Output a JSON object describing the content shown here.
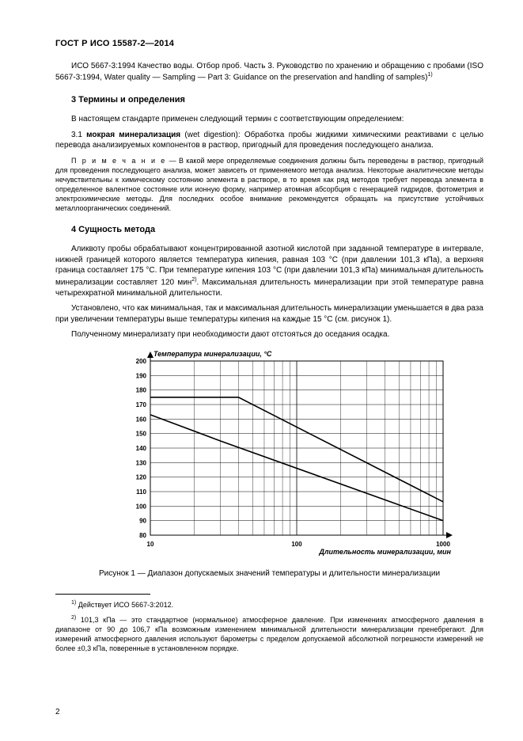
{
  "header": "ГОСТ Р ИСО 15587-2—2014",
  "para_iso": "ИСО 5667-3:1994 Качество воды. Отбор проб. Часть 3. Руководство по хранению и обращению с пробами (ISO 5667-3:1994, Water quality — Sampling — Part 3: Guidance on the preservation and handling of samples)",
  "sup1": "1)",
  "sec3_title": "3  Термины и определения",
  "sec3_p1": "В настоящем стандарте применен следующий термин с соответствующим определением:",
  "sec3_p2_lead": "3.1  ",
  "sec3_p2_bold": "мокрая минерализация",
  "sec3_p2_rest": " (wet digestion): Обработка пробы жидкими химическими реактивами с целью перевода анализируемых компонентов в раствор, пригодный для проведения последующего анализа.",
  "note_lead": "П р и м е ч а н и е",
  "note_body": " — В какой мере определяемые соединения должны быть переведены в раствор, пригодный для проведения последующего анализа, может зависеть от применяемого метода анализа. Некоторые аналитические методы нечувствительны к химическому состоянию элемента в растворе, в то время как ряд методов требует перевода элемента в определенное валентное состояние или ионную форму, например атомная абсорбция с генерацией гидридов, фотометрия и электрохимические методы. Для последних особое внимание рекомендуется обращать на присутствие устойчивых металлоорганических соединений.",
  "sec4_title": "4  Сущность метода",
  "sec4_p1a": "Аликвоту пробы обрабатывают концентрированной азотной кислотой при заданной температуре в интервале, нижней границей которого является температура кипения, равная 103 °С (при давлении 101,3 кПа), а верхняя граница составляет 175 °С. При температуре кипения 103 °С (при давлении 101,3 кПа) минимальная длительность минерализации составляет 120 мин",
  "sup2": "2)",
  "sec4_p1b": ". Максимальная длительность минерализации при этой температуре равна четырехкратной минимальной длительности.",
  "sec4_p2": "Установлено, что как минимальная, так и максимальная длительность минерализации уменьшается в два раза при увеличении температуры выше температуры кипения на каждые 15 °С (см. рисунок 1).",
  "sec4_p3": "Полученному минерализату при необходимости дают отстояться до оседания осадка.",
  "chart": {
    "y_title": "Температура минерализации, °С",
    "x_title": "Длительность минерализации, мин",
    "y_min": 80,
    "y_max": 200,
    "y_step": 10,
    "x_ticks": [
      10,
      100,
      1000
    ],
    "x_log_min": 1,
    "x_log_max": 3,
    "upper_line": [
      [
        1.0,
        175
      ],
      [
        1.602,
        175
      ],
      [
        3.0,
        103
      ]
    ],
    "lower_line": [
      [
        1.0,
        163
      ],
      [
        1.477,
        145
      ],
      [
        3.0,
        90
      ]
    ],
    "line_color": "#000000",
    "grid_color": "#000000",
    "bg": "#ffffff",
    "axis_fontsize": 8,
    "title_fontsize": 9
  },
  "caption": "Рисунок  1 — Диапазон допускаемых значений температуры и длительности минерализации",
  "fn1": " Действует ИСО 5667-3:2012.",
  "fn2": " 101,3 кПа — это стандартное (нормальное) атмосферное давление. При изменениях атмосферного давления в диапазоне от 90 до 106,7 кПа возможным изменением минимальной длительности минерализации пренебрегают. Для измерений атмосферного давления используют барометры с пределом допускаемой абсолютной погрешности измерений не более ±0,3 кПа, поверенные в установленном порядке.",
  "pagenum": "2"
}
